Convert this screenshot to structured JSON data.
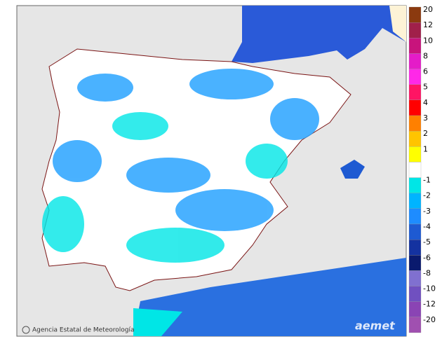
{
  "legend": {
    "entries": [
      {
        "label": 20,
        "color": "#8b3a0f"
      },
      {
        "label": 12,
        "color": "#a0204a"
      },
      {
        "label": 10,
        "color": "#c8147c"
      },
      {
        "label": 8,
        "color": "#e41cc8"
      },
      {
        "label": 6,
        "color": "#ff28e8"
      },
      {
        "label": 5,
        "color": "#ff1464"
      },
      {
        "label": 4,
        "color": "#ff0000"
      },
      {
        "label": 3,
        "color": "#ff8000"
      },
      {
        "label": 2,
        "color": "#ffc400"
      },
      {
        "label": 1,
        "color": "#ffff00"
      },
      {
        "label": -1,
        "color": "#00e6e6"
      },
      {
        "label": -2,
        "color": "#00b4ff"
      },
      {
        "label": -3,
        "color": "#1e8cff"
      },
      {
        "label": -4,
        "color": "#1e5ad2"
      },
      {
        "label": -5,
        "color": "#1432a0"
      },
      {
        "label": -6,
        "color": "#0a1a6e"
      },
      {
        "label": -8,
        "color": "#8070d0"
      },
      {
        "label": -10,
        "color": "#7050c0"
      },
      {
        "label": -12,
        "color": "#8a44b4"
      },
      {
        "label": -20,
        "color": "#a050b0"
      }
    ]
  },
  "footer": {
    "credit": "Agencia Estatal de Meteorología",
    "logo": "aemet"
  }
}
